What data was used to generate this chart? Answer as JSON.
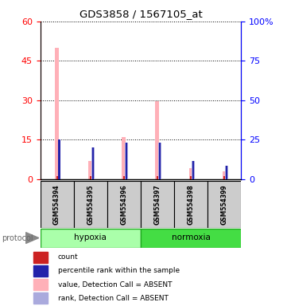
{
  "title": "GDS3858 / 1567105_at",
  "samples": [
    "GSM554394",
    "GSM554395",
    "GSM554396",
    "GSM554397",
    "GSM554398",
    "GSM554399"
  ],
  "group_labels": [
    "hypoxia",
    "normoxia"
  ],
  "value_absent": [
    50.0,
    7.0,
    16.0,
    29.5,
    4.0,
    3.0
  ],
  "rank_absent_pct": [
    25.0,
    20.0,
    23.0,
    23.0,
    11.5,
    8.5
  ],
  "count_val": [
    1.0,
    1.0,
    1.0,
    1.0,
    1.0,
    1.0
  ],
  "percentile_val_pct": [
    25.0,
    20.0,
    23.0,
    23.0,
    11.5,
    8.5
  ],
  "left_ylim": [
    0,
    60
  ],
  "left_yticks": [
    0,
    15,
    30,
    45,
    60
  ],
  "right_ylim": [
    0,
    100
  ],
  "right_yticks": [
    0,
    25,
    50,
    75,
    100
  ],
  "right_yticklabels": [
    "0",
    "25",
    "50",
    "75",
    "100%"
  ],
  "pink_color": "#FFB0B8",
  "blue_color": "#AAAADD",
  "red_color": "#CC2222",
  "darkblue_color": "#2222AA",
  "green_light": "#AAFFAA",
  "green_dark": "#44DD44",
  "label_box_color": "#CCCCCC",
  "protocol_label": "protocol",
  "legend_items": [
    {
      "color": "#CC2222",
      "label": "count"
    },
    {
      "color": "#2222AA",
      "label": "percentile rank within the sample"
    },
    {
      "color": "#FFB0B8",
      "label": "value, Detection Call = ABSENT"
    },
    {
      "color": "#AAAADD",
      "label": "rank, Detection Call = ABSENT"
    }
  ]
}
